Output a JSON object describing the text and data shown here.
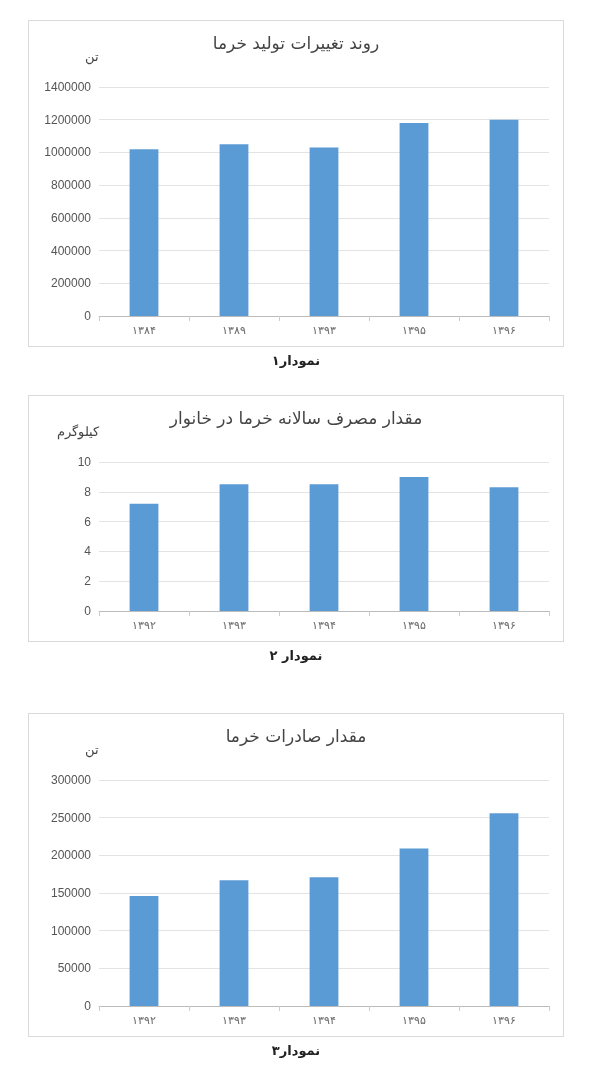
{
  "chart_data": [
    {
      "type": "bar",
      "title": "روند تغییرات تولید خرما",
      "ylabel": "تن",
      "categories": [
        "۱۳۸۴",
        "۱۳۸۹",
        "۱۳۹۳",
        "۱۳۹۵",
        "۱۳۹۶"
      ],
      "values": [
        1020000,
        1050000,
        1030000,
        1180000,
        1200000
      ],
      "color": "#5b9bd5",
      "ylim": [
        0,
        1400000
      ],
      "yticks": [
        0,
        200000,
        400000,
        600000,
        800000,
        1000000,
        1200000,
        1400000
      ],
      "grid": "y",
      "annotations": [
        "نمودار۱"
      ]
    },
    {
      "type": "bar",
      "title": "مقدار مصرف سالانه خرما در خانوار",
      "ylabel": "کیلوگرم",
      "categories": [
        "۱۳۹۲",
        "۱۳۹۳",
        "۱۳۹۴",
        "۱۳۹۵",
        "۱۳۹۶"
      ],
      "values": [
        7.2,
        8.5,
        8.5,
        9,
        8.3
      ],
      "color": "#5b9bd5",
      "ylim": [
        0,
        10
      ],
      "yticks": [
        0,
        2,
        4,
        6,
        8,
        10
      ],
      "grid": "y",
      "annotations": [
        "نمودار ۲"
      ]
    },
    {
      "type": "bar",
      "title": "مقدار صادرات خرما",
      "ylabel": "تن",
      "categories": [
        "۱۳۹۲",
        "۱۳۹۳",
        "۱۳۹۴",
        "۱۳۹۵",
        "۱۳۹۶"
      ],
      "values": [
        146000,
        167000,
        171000,
        209000,
        256000
      ],
      "color": "#5b9bd5",
      "ylim": [
        0,
        300000
      ],
      "yticks": [
        0,
        50000,
        100000,
        150000,
        200000,
        250000,
        300000
      ],
      "grid": "y",
      "annotations": [
        "نمودار۳"
      ]
    }
  ]
}
